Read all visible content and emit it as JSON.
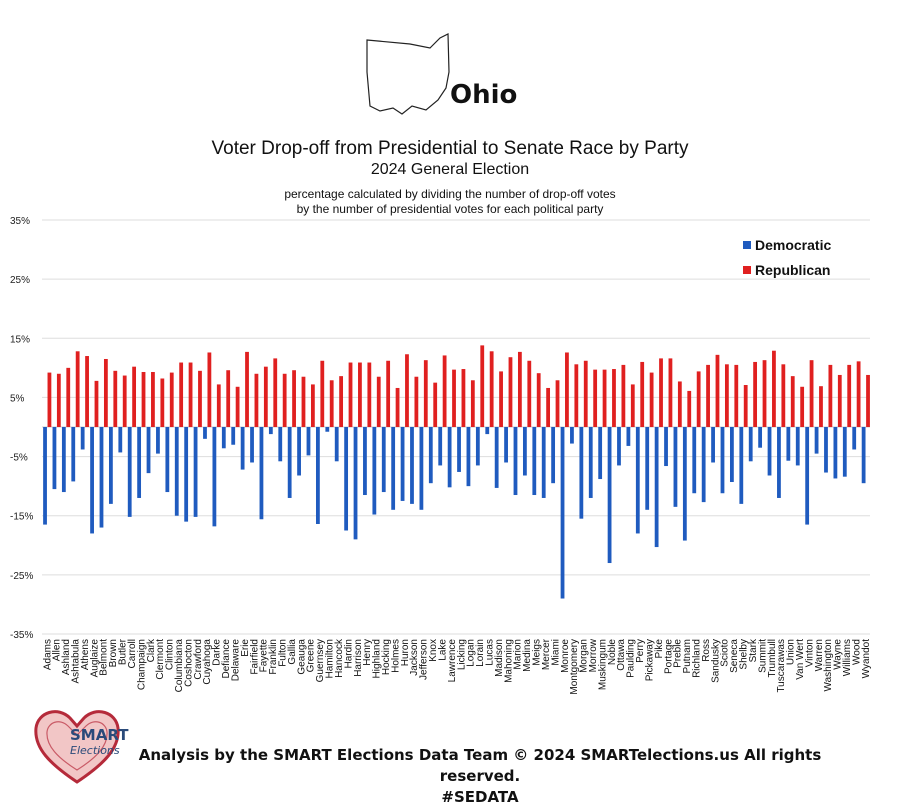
{
  "header": {
    "state": "Ohio",
    "title": "Voter Drop-off from Presidential to Senate Race by Party",
    "subtitle": "2024 General Election",
    "note_line1": "percentage calculated by dividing the number of drop-off votes",
    "note_line2": "by the number of presidential votes for each political party"
  },
  "footer": {
    "line1": "Analysis by the SMART Elections Data Team © 2024 SMARTelections.us All rights reserved.",
    "line2": "#SEDATA"
  },
  "logo": {
    "line1": "SMART",
    "line2": "Elections"
  },
  "colors": {
    "democratic": "#1f5bbf",
    "republican": "#e02020",
    "grid": "#dddddd"
  },
  "chart_data": {
    "type": "bar",
    "title": "Voter Drop-off from Presidential to Senate Race by Party",
    "xlabel": "",
    "ylabel": "",
    "ylim": [
      -35,
      35
    ],
    "yticks": [
      35,
      25,
      15,
      5,
      -5,
      -15,
      -25,
      -35
    ],
    "ytick_labels": [
      "35%",
      "25%",
      "15%",
      "5%",
      "-5%",
      "-15%",
      "-25%",
      "-35%"
    ],
    "legend_position": "top-right",
    "categories": [
      "Adams",
      "Allen",
      "Ashland",
      "Ashtabula",
      "Athens",
      "Auglaize",
      "Belmont",
      "Brown",
      "Butler",
      "Carroll",
      "Champaign",
      "Clark",
      "Clermont",
      "Clinton",
      "Columbiana",
      "Coshocton",
      "Crawford",
      "Cuyahoga",
      "Darke",
      "Defiance",
      "Delaware",
      "Erie",
      "Fairfield",
      "Fayette",
      "Franklin",
      "Fulton",
      "Gallia",
      "Geauga",
      "Greene",
      "Guernsey",
      "Hamilton",
      "Hancock",
      "Hardin",
      "Harrison",
      "Henry",
      "Highland",
      "Hocking",
      "Holmes",
      "Huron",
      "Jackson",
      "Jefferson",
      "Knox",
      "Lake",
      "Lawrence",
      "Licking",
      "Logan",
      "Lorain",
      "Lucas",
      "Madison",
      "Mahoning",
      "Marion",
      "Medina",
      "Meigs",
      "Mercer",
      "Miami",
      "Monroe",
      "Montgomery",
      "Morgan",
      "Morrow",
      "Muskingum",
      "Noble",
      "Ottawa",
      "Paulding",
      "Perry",
      "Pickaway",
      "Pike",
      "Portage",
      "Preble",
      "Putnam",
      "Richland",
      "Ross",
      "Sandusky",
      "Scioto",
      "Seneca",
      "Shelby",
      "Stark",
      "Summit",
      "Trumbull",
      "Tuscarawas",
      "Union",
      "Van Wert",
      "Vinton",
      "Warren",
      "Washington",
      "Wayne",
      "Williams",
      "Wood",
      "Wyandot"
    ],
    "series": [
      {
        "name": "Democratic",
        "values": [
          -16.5,
          -10.5,
          -11,
          -9.2,
          -3.8,
          -18,
          -17,
          -13,
          -4.3,
          -15.2,
          -12,
          -7.8,
          -4.5,
          -11,
          -15,
          -16,
          -15.2,
          -2,
          -16.8,
          -3.6,
          -3,
          -7.2,
          -6,
          -15.6,
          -1.2,
          -5.8,
          -12,
          -8.2,
          -4.8,
          -16.4,
          -0.8,
          -5.8,
          -17.5,
          -19,
          -11.5,
          -14.8,
          -11,
          -14,
          -12.5,
          -13,
          -14,
          -9.5,
          -6.5,
          -10.2,
          -7.6,
          -10,
          -6.5,
          -1.2,
          -10.3,
          -6,
          -11.5,
          -8.2,
          -11.5,
          -12,
          -9.5,
          -29,
          -2.8,
          -15.5,
          -12,
          -8.8,
          -23,
          -6.5,
          -3.2,
          -18,
          -14,
          -20.3,
          -6.6,
          -13.5,
          -19.2,
          -11.2,
          -12.7,
          -6,
          -11.2,
          -9.3,
          -13,
          -5.8,
          -3.5,
          -8.2,
          -12,
          -5.7,
          -6.5,
          -16.5,
          -4.5,
          -7.7,
          -8.7,
          -8.4,
          -3.8,
          -9.5
        ]
      },
      {
        "name": "Republican",
        "values": [
          9.2,
          9,
          10,
          12.8,
          12,
          7.8,
          11.5,
          9.5,
          8.7,
          10.2,
          9.3,
          9.3,
          8.2,
          9.2,
          10.9,
          10.9,
          9.5,
          12.6,
          7.2,
          9.6,
          6.8,
          12.7,
          9,
          10.2,
          11.6,
          9,
          9.6,
          8.5,
          7.2,
          11.2,
          7.9,
          8.6,
          10.9,
          10.9,
          10.9,
          8.5,
          11.2,
          6.6,
          12.3,
          8.5,
          11.3,
          7.5,
          12.1,
          9.7,
          9.8,
          7.9,
          13.8,
          12.8,
          9.4,
          11.8,
          12.7,
          11.2,
          9.1,
          6.6,
          7.9,
          12.6,
          10.6,
          11.2,
          9.7,
          9.7,
          9.8,
          10.5,
          7.2,
          11,
          9.2,
          11.6,
          11.6,
          7.7,
          6.1,
          9.4,
          10.5,
          12.2,
          10.6,
          10.5,
          7.1,
          11,
          11.3,
          12.9,
          10.6,
          8.6,
          6.8,
          11.3,
          6.9,
          10.5,
          8.8,
          10.5,
          11.1,
          8.8
        ]
      }
    ]
  }
}
